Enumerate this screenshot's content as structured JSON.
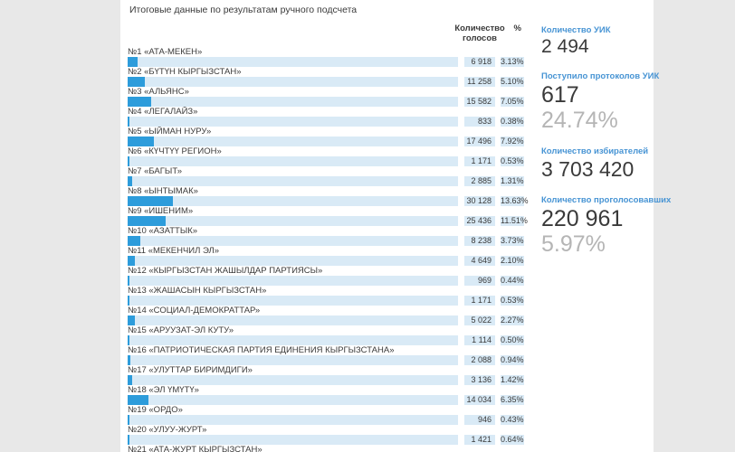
{
  "page": {
    "title": "Итоговые данные по результатам ручного подсчета"
  },
  "table": {
    "headers": {
      "votes_line1": "Количество",
      "votes_line2": "голосов",
      "percent": "%"
    },
    "rows": [
      {
        "name": "№1 «АТА-МЕКЕН»",
        "votes": "6 918",
        "percent": "3.13%",
        "percent_value": 3.13
      },
      {
        "name": "№2 «БҮТҮН КЫРГЫЗСТАН»",
        "votes": "11 258",
        "percent": "5.10%",
        "percent_value": 5.1
      },
      {
        "name": "№3 «АЛЬЯНС»",
        "votes": "15 582",
        "percent": "7.05%",
        "percent_value": 7.05
      },
      {
        "name": "№4 «ЛЕГАЛАЙЗ»",
        "votes": "833",
        "percent": "0.38%",
        "percent_value": 0.38
      },
      {
        "name": "№5 «ЫЙМАН НУРУ»",
        "votes": "17 496",
        "percent": "7.92%",
        "percent_value": 7.92
      },
      {
        "name": "№6 «КҮЧТҮҮ РЕГИОН»",
        "votes": "1 171",
        "percent": "0.53%",
        "percent_value": 0.53
      },
      {
        "name": "№7 «БАГЫТ»",
        "votes": "2 885",
        "percent": "1.31%",
        "percent_value": 1.31
      },
      {
        "name": "№8 «ЫНТЫМАК»",
        "votes": "30 128",
        "percent": "13.63%",
        "percent_value": 13.63
      },
      {
        "name": "№9 «ИШЕНИМ»",
        "votes": "25 436",
        "percent": "11.51%",
        "percent_value": 11.51
      },
      {
        "name": "№10 «АЗАТТЫК»",
        "votes": "8 238",
        "percent": "3.73%",
        "percent_value": 3.73
      },
      {
        "name": "№11 «МЕКЕНЧИЛ ЭЛ»",
        "votes": "4 649",
        "percent": "2.10%",
        "percent_value": 2.1
      },
      {
        "name": "№12 «КЫРГЫЗСТАН ЖАШЫЛДАР ПАРТИЯСЫ»",
        "votes": "969",
        "percent": "0.44%",
        "percent_value": 0.44
      },
      {
        "name": "№13 «ЖАШАСЫН КЫРГЫЗСТАН»",
        "votes": "1 171",
        "percent": "0.53%",
        "percent_value": 0.53
      },
      {
        "name": "№14 «СОЦИАЛ-ДЕМОКРАТТАР»",
        "votes": "5 022",
        "percent": "2.27%",
        "percent_value": 2.27
      },
      {
        "name": "№15 «АРУУЗАТ-ЭЛ КУТУ»",
        "votes": "1 114",
        "percent": "0.50%",
        "percent_value": 0.5
      },
      {
        "name": "№16 «ПАТРИОТИЧЕСКАЯ ПАРТИЯ ЕДИНЕНИЯ КЫРГЫЗСТАНА»",
        "votes": "2 088",
        "percent": "0.94%",
        "percent_value": 0.94
      },
      {
        "name": "№17 «УЛУТТАР БИРИМДИГИ»",
        "votes": "3 136",
        "percent": "1.42%",
        "percent_value": 1.42
      },
      {
        "name": "№18 «ЭЛ ҮМҮТҮ»",
        "votes": "14 034",
        "percent": "6.35%",
        "percent_value": 6.35
      },
      {
        "name": "№19 «ОРДО»",
        "votes": "946",
        "percent": "0.43%",
        "percent_value": 0.43
      },
      {
        "name": "№20 «УЛУУ-ЖУРТ»",
        "votes": "1 421",
        "percent": "0.64%",
        "percent_value": 0.64
      },
      {
        "name": "№21 «АТА-ЖУРТ КЫРГЫЗСТАН»",
        "votes": "",
        "percent": "",
        "percent_value": 0
      }
    ]
  },
  "stats": [
    {
      "label": "Количество УИК",
      "value": "2 494",
      "percent": ""
    },
    {
      "label": "Поступило протоколов УИК",
      "value": "617",
      "percent": "24.74%"
    },
    {
      "label": "Количество избирателей",
      "value": "3 703 420",
      "percent": ""
    },
    {
      "label": "Количество проголосовавших",
      "value": "220 961",
      "percent": "5.97%"
    }
  ],
  "colors": {
    "accent_blue": "#2d9cdb",
    "track_blue": "#d9eaf6",
    "link_blue": "#4794d4",
    "muted_gray": "#b5b5b5",
    "page_gray": "#e8e8e8"
  }
}
